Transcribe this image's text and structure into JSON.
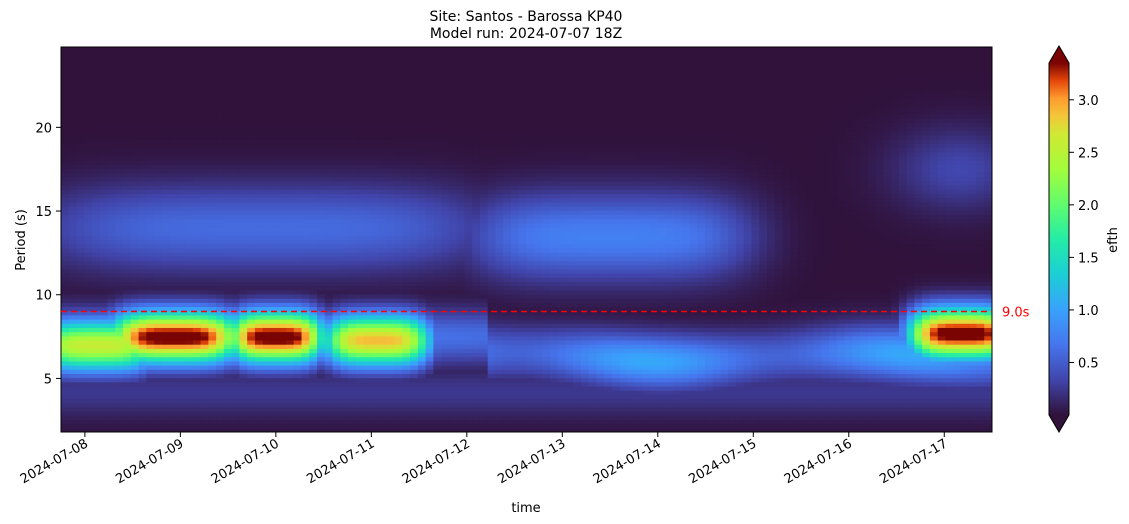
{
  "chart_data": {
    "type": "heatmap",
    "title_line1": "Site: Santos - Barossa KP40",
    "title_line2": "Model run: 2024-07-07 18Z",
    "xlabel": "time",
    "ylabel": "Period (s)",
    "colorbar_label": "efth",
    "xlim": [
      "2024-07-07T18:00",
      "2024-07-17T12:00"
    ],
    "ylim": [
      1.8,
      24.8
    ],
    "x_ticks": [
      "2024-07-08",
      "2024-07-09",
      "2024-07-10",
      "2024-07-11",
      "2024-07-12",
      "2024-07-13",
      "2024-07-14",
      "2024-07-15",
      "2024-07-16",
      "2024-07-17"
    ],
    "y_ticks": [
      5,
      10,
      15,
      20
    ],
    "color_range": [
      0,
      3.35
    ],
    "colorbar_ticks": [
      "0.5",
      "1.0",
      "1.5",
      "2.0",
      "2.5",
      "3.0"
    ],
    "colormap": "turbo",
    "colorbar_extend": "both",
    "reference_line": {
      "value": 9.0,
      "label": "9.0s",
      "color": "#ff0000",
      "style": "dashed"
    },
    "features": [
      {
        "desc": "swell band",
        "t0": "2024-07-07T18:00",
        "t1": "2024-07-12T00:00",
        "period": 14.0,
        "value": 0.6
      },
      {
        "desc": "swell band",
        "t0": "2024-07-12T06:00",
        "t1": "2024-07-14T18:00",
        "period": 13.5,
        "value": 0.75
      },
      {
        "desc": "peak",
        "t0": "2024-07-07T18:00",
        "t1": "2024-07-08T12:00",
        "period": 7.0,
        "value": 2.6
      },
      {
        "desc": "peak",
        "t0": "2024-07-08T12:00",
        "t1": "2024-07-09T09:00",
        "period": 7.5,
        "value": 3.5
      },
      {
        "desc": "peak",
        "t0": "2024-07-09T18:00",
        "t1": "2024-07-10T06:00",
        "period": 7.5,
        "value": 3.5
      },
      {
        "desc": "peak",
        "t0": "2024-07-10T18:00",
        "t1": "2024-07-11T09:00",
        "period": 7.3,
        "value": 2.9
      },
      {
        "desc": "peak",
        "t0": "2024-07-16T21:00",
        "t1": "2024-07-17T12:00",
        "period": 7.7,
        "value": 3.5
      }
    ]
  }
}
